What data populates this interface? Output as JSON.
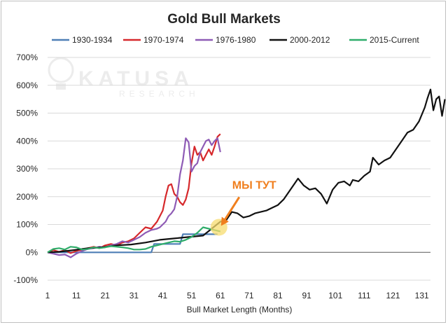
{
  "chart_data": {
    "type": "line",
    "title": "Gold Bull Markets",
    "xlabel": "Bull Market Length (Months)",
    "ylabel": "",
    "xlim": [
      1,
      134
    ],
    "ylim": [
      -100,
      700
    ],
    "x_ticks": [
      1,
      11,
      21,
      31,
      41,
      51,
      61,
      71,
      81,
      91,
      101,
      111,
      121,
      131
    ],
    "y_ticks": [
      -100,
      0,
      100,
      200,
      300,
      400,
      500,
      600,
      700
    ],
    "y_tick_labels": [
      "-100%",
      "0%",
      "100%",
      "200%",
      "300%",
      "400%",
      "500%",
      "600%",
      "700%"
    ],
    "grid": "horizontal",
    "legend_position": "top",
    "series": [
      {
        "name": "1930-1934",
        "color": "#4e7fb6",
        "points": [
          [
            1,
            0
          ],
          [
            10,
            0
          ],
          [
            20,
            0
          ],
          [
            30,
            0
          ],
          [
            37,
            0
          ],
          [
            38,
            30
          ],
          [
            46,
            30
          ],
          [
            47,
            30
          ],
          [
            48,
            65
          ],
          [
            60,
            65
          ]
        ]
      },
      {
        "name": "1970-1974",
        "color": "#d6282b",
        "points": [
          [
            1,
            0
          ],
          [
            3,
            8
          ],
          [
            5,
            2
          ],
          [
            7,
            8
          ],
          [
            9,
            -3
          ],
          [
            11,
            5
          ],
          [
            13,
            10
          ],
          [
            15,
            15
          ],
          [
            17,
            20
          ],
          [
            19,
            15
          ],
          [
            21,
            25
          ],
          [
            23,
            30
          ],
          [
            25,
            25
          ],
          [
            27,
            35
          ],
          [
            29,
            40
          ],
          [
            31,
            50
          ],
          [
            33,
            70
          ],
          [
            35,
            90
          ],
          [
            37,
            85
          ],
          [
            39,
            110
          ],
          [
            40,
            130
          ],
          [
            41,
            150
          ],
          [
            42,
            200
          ],
          [
            43,
            240
          ],
          [
            44,
            245
          ],
          [
            45,
            210
          ],
          [
            46,
            200
          ],
          [
            47,
            180
          ],
          [
            48,
            170
          ],
          [
            49,
            190
          ],
          [
            50,
            230
          ],
          [
            51,
            320
          ],
          [
            52,
            380
          ],
          [
            53,
            350
          ],
          [
            54,
            360
          ],
          [
            55,
            330
          ],
          [
            56,
            350
          ],
          [
            57,
            370
          ],
          [
            58,
            350
          ],
          [
            59,
            380
          ],
          [
            60,
            415
          ],
          [
            61,
            425
          ]
        ]
      },
      {
        "name": "1976-1980",
        "color": "#8e5bb5",
        "points": [
          [
            1,
            0
          ],
          [
            3,
            -5
          ],
          [
            5,
            -10
          ],
          [
            7,
            -8
          ],
          [
            9,
            -18
          ],
          [
            11,
            -5
          ],
          [
            13,
            5
          ],
          [
            15,
            12
          ],
          [
            17,
            15
          ],
          [
            19,
            20
          ],
          [
            21,
            18
          ],
          [
            23,
            25
          ],
          [
            25,
            30
          ],
          [
            27,
            40
          ],
          [
            29,
            35
          ],
          [
            31,
            45
          ],
          [
            33,
            55
          ],
          [
            35,
            70
          ],
          [
            37,
            80
          ],
          [
            39,
            85
          ],
          [
            40,
            90
          ],
          [
            41,
            100
          ],
          [
            42,
            110
          ],
          [
            43,
            130
          ],
          [
            44,
            140
          ],
          [
            45,
            155
          ],
          [
            46,
            200
          ],
          [
            47,
            280
          ],
          [
            48,
            330
          ],
          [
            49,
            410
          ],
          [
            50,
            395
          ],
          [
            51,
            290
          ],
          [
            52,
            310
          ],
          [
            53,
            320
          ],
          [
            54,
            360
          ],
          [
            55,
            380
          ],
          [
            56,
            400
          ],
          [
            57,
            405
          ],
          [
            58,
            385
          ],
          [
            59,
            400
          ],
          [
            60,
            410
          ],
          [
            61,
            360
          ]
        ]
      },
      {
        "name": "2000-2012",
        "color": "#111111",
        "points": [
          [
            1,
            0
          ],
          [
            5,
            2
          ],
          [
            10,
            8
          ],
          [
            15,
            15
          ],
          [
            20,
            18
          ],
          [
            25,
            25
          ],
          [
            30,
            28
          ],
          [
            35,
            35
          ],
          [
            40,
            45
          ],
          [
            45,
            50
          ],
          [
            50,
            55
          ],
          [
            55,
            60
          ],
          [
            58,
            85
          ],
          [
            61,
            110
          ],
          [
            63,
            115
          ],
          [
            65,
            145
          ],
          [
            67,
            140
          ],
          [
            69,
            125
          ],
          [
            71,
            130
          ],
          [
            73,
            140
          ],
          [
            75,
            145
          ],
          [
            77,
            150
          ],
          [
            79,
            160
          ],
          [
            81,
            170
          ],
          [
            83,
            190
          ],
          [
            85,
            220
          ],
          [
            87,
            250
          ],
          [
            88,
            265
          ],
          [
            90,
            240
          ],
          [
            92,
            225
          ],
          [
            94,
            230
          ],
          [
            96,
            210
          ],
          [
            98,
            175
          ],
          [
            100,
            225
          ],
          [
            102,
            250
          ],
          [
            104,
            255
          ],
          [
            106,
            240
          ],
          [
            107,
            260
          ],
          [
            109,
            255
          ],
          [
            111,
            275
          ],
          [
            113,
            290
          ],
          [
            114,
            340
          ],
          [
            116,
            315
          ],
          [
            118,
            330
          ],
          [
            120,
            340
          ],
          [
            122,
            370
          ],
          [
            124,
            400
          ],
          [
            126,
            430
          ],
          [
            128,
            440
          ],
          [
            130,
            470
          ],
          [
            132,
            520
          ],
          [
            133,
            555
          ],
          [
            134,
            585
          ],
          [
            135,
            510
          ],
          [
            136,
            550
          ],
          [
            137,
            560
          ],
          [
            138,
            490
          ],
          [
            139,
            550
          ]
        ]
      },
      {
        "name": "2015-Current",
        "color": "#2fad6a",
        "points": [
          [
            1,
            0
          ],
          [
            3,
            12
          ],
          [
            5,
            15
          ],
          [
            7,
            10
          ],
          [
            9,
            20
          ],
          [
            11,
            18
          ],
          [
            13,
            10
          ],
          [
            15,
            12
          ],
          [
            17,
            18
          ],
          [
            19,
            15
          ],
          [
            21,
            18
          ],
          [
            23,
            22
          ],
          [
            25,
            20
          ],
          [
            27,
            18
          ],
          [
            29,
            15
          ],
          [
            31,
            10
          ],
          [
            33,
            10
          ],
          [
            35,
            12
          ],
          [
            37,
            20
          ],
          [
            39,
            25
          ],
          [
            41,
            30
          ],
          [
            43,
            35
          ],
          [
            45,
            40
          ],
          [
            47,
            38
          ],
          [
            49,
            45
          ],
          [
            51,
            55
          ],
          [
            53,
            70
          ],
          [
            55,
            90
          ],
          [
            57,
            85
          ],
          [
            59,
            80
          ],
          [
            61,
            75
          ]
        ]
      }
    ],
    "annotations": [
      {
        "text": "МЫ ТУТ",
        "x": 61,
        "y": 85
      }
    ]
  },
  "watermark": {
    "main": "KATUSA",
    "sub": "RESEARCH"
  }
}
